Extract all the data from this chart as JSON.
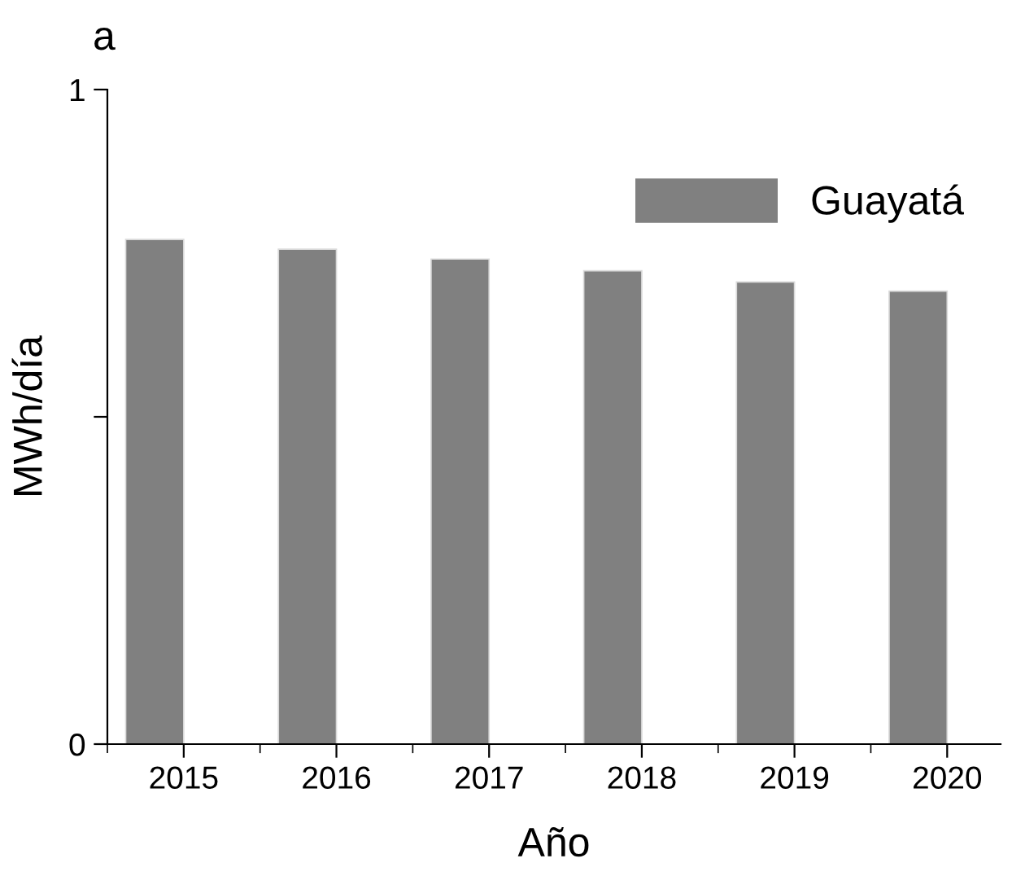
{
  "chart_data": {
    "type": "bar",
    "title": "a",
    "xlabel": "Año",
    "ylabel": "MWh/día",
    "categories": [
      "2015",
      "2016",
      "2017",
      "2018",
      "2019",
      "2020"
    ],
    "series": [
      {
        "name": "Guayatá",
        "color": "#808080",
        "values": [
          0.771,
          0.756,
          0.741,
          0.723,
          0.706,
          0.692
        ]
      }
    ],
    "ylim": [
      0,
      1
    ],
    "yticks": [
      0,
      {
        "value": 0.5,
        "label": null
      },
      1
    ],
    "grid": false,
    "legend": "top right"
  }
}
